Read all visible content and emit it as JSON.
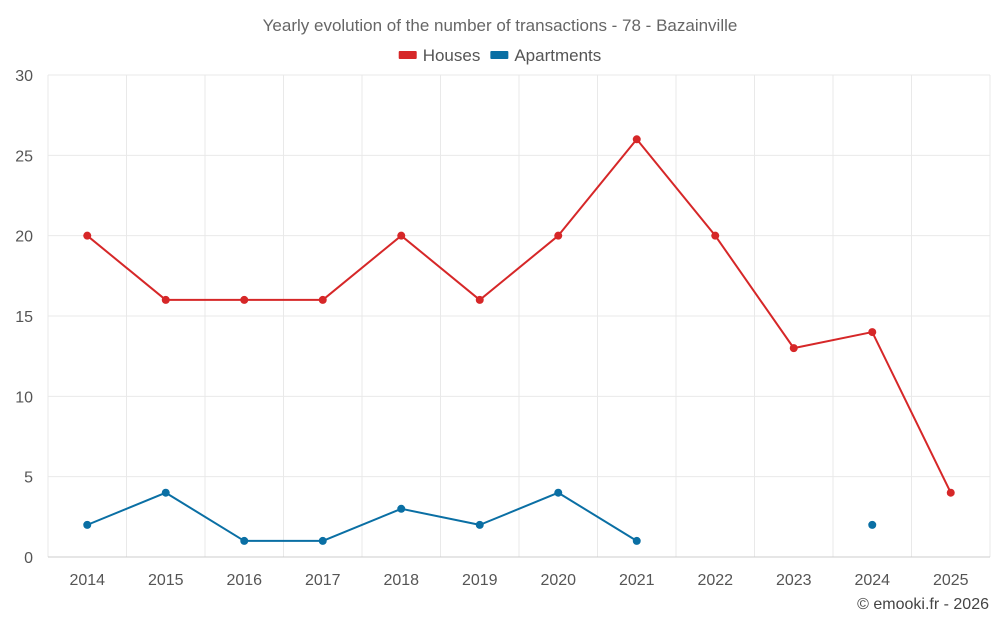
{
  "chart_data": {
    "type": "line",
    "title": "Yearly evolution of the number of transactions - 78 - Bazainville",
    "xlabel": "",
    "ylabel": "",
    "categories": [
      "2014",
      "2015",
      "2016",
      "2017",
      "2018",
      "2019",
      "2020",
      "2021",
      "2022",
      "2023",
      "2024",
      "2025"
    ],
    "ylim": [
      0,
      30
    ],
    "yticks": [
      0,
      5,
      10,
      15,
      20,
      25,
      30
    ],
    "grid": true,
    "legend_position": "top-center",
    "series": [
      {
        "name": "Houses",
        "color": "#d62728",
        "values": [
          20,
          16,
          16,
          16,
          20,
          16,
          20,
          26,
          20,
          13,
          14,
          4
        ]
      },
      {
        "name": "Apartments",
        "color": "#0a6fa4",
        "values": [
          2,
          4,
          1,
          1,
          3,
          2,
          4,
          1,
          null,
          null,
          2,
          null
        ]
      }
    ]
  },
  "footer": {
    "credit": "© emooki.fr - 2026"
  }
}
